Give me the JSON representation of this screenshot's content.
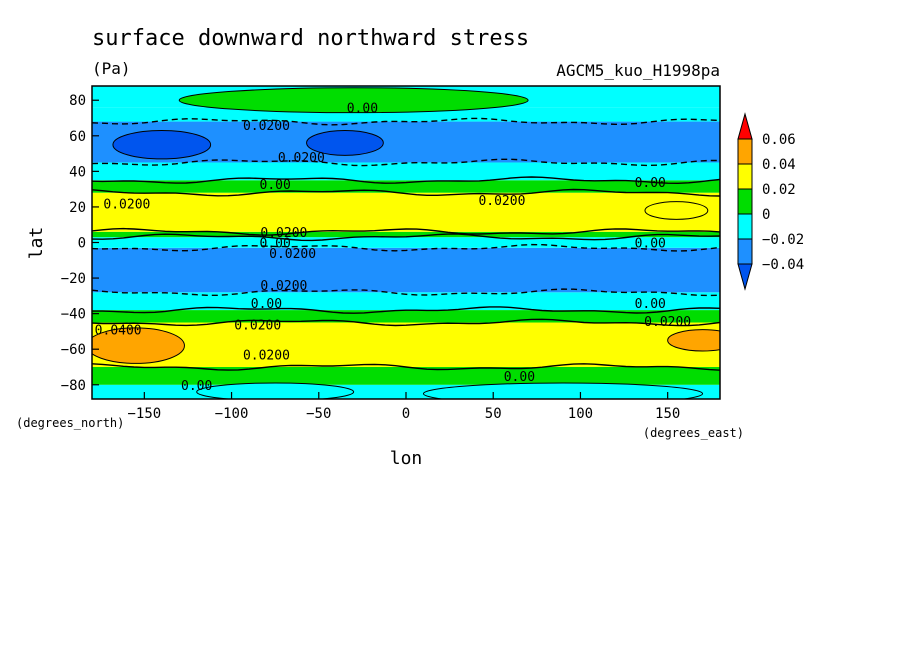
{
  "chart_data": {
    "type": "heatmap",
    "title": "surface downward northward stress",
    "units": "(Pa)",
    "dataset": "AGCM5_kuo_H1998pa",
    "xlabel": "lon",
    "ylabel": "lat",
    "x_unit": "(degrees_east)",
    "y_unit": "(degrees_north)",
    "xlim": [
      -180,
      180
    ],
    "ylim": [
      -88,
      88
    ],
    "x_ticks": [
      -150,
      -100,
      -50,
      0,
      50,
      100,
      150
    ],
    "y_ticks": [
      -80,
      -60,
      -40,
      -20,
      0,
      20,
      40,
      60,
      80
    ],
    "x_tick_labels": [
      "−150",
      "−100",
      "−50",
      "0",
      "50",
      "100",
      "150"
    ],
    "y_tick_labels": [
      "−80",
      "−60",
      "−40",
      "−20",
      "0",
      "20",
      "40",
      "60",
      "80"
    ],
    "colorbar": {
      "labels": [
        "0.06",
        "0.04",
        "0.02",
        "0",
        "−0.02",
        "−0.04"
      ],
      "colors": [
        "#ff0000",
        "#ffa500",
        "#ffff00",
        "#00dd00",
        "#00ffff",
        "#1e90ff",
        "#0055ee"
      ]
    },
    "bands": [
      {
        "lat_min": -88,
        "lat_max": -80,
        "value": -0.01
      },
      {
        "lat_min": -80,
        "lat_max": -70,
        "value": 0.01
      },
      {
        "lat_min": -70,
        "lat_max": -45,
        "value": 0.03
      },
      {
        "lat_min": -45,
        "lat_max": -38,
        "value": 0.01
      },
      {
        "lat_min": -38,
        "lat_max": -28,
        "value": -0.01
      },
      {
        "lat_min": -28,
        "lat_max": -3,
        "value": -0.03
      },
      {
        "lat_min": -3,
        "lat_max": 3,
        "value": -0.01
      },
      {
        "lat_min": 3,
        "lat_max": 6,
        "value": 0.01
      },
      {
        "lat_min": 6,
        "lat_max": 28,
        "value": 0.03
      },
      {
        "lat_min": 28,
        "lat_max": 35,
        "value": 0.01
      },
      {
        "lat_min": 35,
        "lat_max": 45,
        "value": -0.01
      },
      {
        "lat_min": 45,
        "lat_max": 68,
        "value": -0.03
      },
      {
        "lat_min": 68,
        "lat_max": 76,
        "value": -0.01
      },
      {
        "lat_min": 76,
        "lat_max": 88,
        "value": -0.01
      }
    ],
    "patches": [
      {
        "lon": -140,
        "lat": 55,
        "rx": 28,
        "ry": 8,
        "value": -0.05
      },
      {
        "lon": -35,
        "lat": 56,
        "rx": 22,
        "ry": 7,
        "value": -0.05
      },
      {
        "lon": -30,
        "lat": 80,
        "rx": 100,
        "ry": 7,
        "value": 0.01
      },
      {
        "lon": -155,
        "lat": -58,
        "rx": 28,
        "ry": 10,
        "value": 0.05
      },
      {
        "lon": 170,
        "lat": -55,
        "rx": 20,
        "ry": 6,
        "value": 0.05
      },
      {
        "lon": -75,
        "lat": -84,
        "rx": 45,
        "ry": 5,
        "value": -0.01
      },
      {
        "lon": 90,
        "lat": -85,
        "rx": 80,
        "ry": 6,
        "value": -0.01
      },
      {
        "lon": 155,
        "lat": 18,
        "rx": 18,
        "ry": 5,
        "value": 0.03
      }
    ],
    "contour_labels": [
      {
        "text": "0.00",
        "lon": -25,
        "lat": 76
      },
      {
        "text": "0.0200",
        "lon": -80,
        "lat": 66
      },
      {
        "text": "0.0200",
        "lon": -60,
        "lat": 48
      },
      {
        "text": "0.00",
        "lon": -75,
        "lat": 33
      },
      {
        "text": "0.0200",
        "lon": -160,
        "lat": 22
      },
      {
        "text": "0.0200",
        "lon": 55,
        "lat": 24
      },
      {
        "text": "0.00",
        "lon": 140,
        "lat": 34
      },
      {
        "text": "0.0200",
        "lon": -70,
        "lat": 6
      },
      {
        "text": "0.00",
        "lon": -75,
        "lat": 0
      },
      {
        "text": "0.0200",
        "lon": -65,
        "lat": -6
      },
      {
        "text": "0.00",
        "lon": 140,
        "lat": 0
      },
      {
        "text": "0.0200",
        "lon": -70,
        "lat": -24
      },
      {
        "text": "0.00",
        "lon": -80,
        "lat": -34
      },
      {
        "text": "0.00",
        "lon": 140,
        "lat": -34
      },
      {
        "text": "0.0200",
        "lon": -85,
        "lat": -46
      },
      {
        "text": "0.0200",
        "lon": 150,
        "lat": -44
      },
      {
        "text": "0.0400",
        "lon": -165,
        "lat": -49
      },
      {
        "text": "0.0200",
        "lon": -80,
        "lat": -63
      },
      {
        "text": "0.00",
        "lon": 65,
        "lat": -75
      },
      {
        "text": "0.00",
        "lon": -120,
        "lat": -80
      }
    ],
    "solid_contours_lat": [
      -70,
      -45,
      -38,
      3,
      6,
      28,
      35
    ],
    "dashed_contours_lat": [
      -28,
      -3,
      45,
      68
    ]
  }
}
